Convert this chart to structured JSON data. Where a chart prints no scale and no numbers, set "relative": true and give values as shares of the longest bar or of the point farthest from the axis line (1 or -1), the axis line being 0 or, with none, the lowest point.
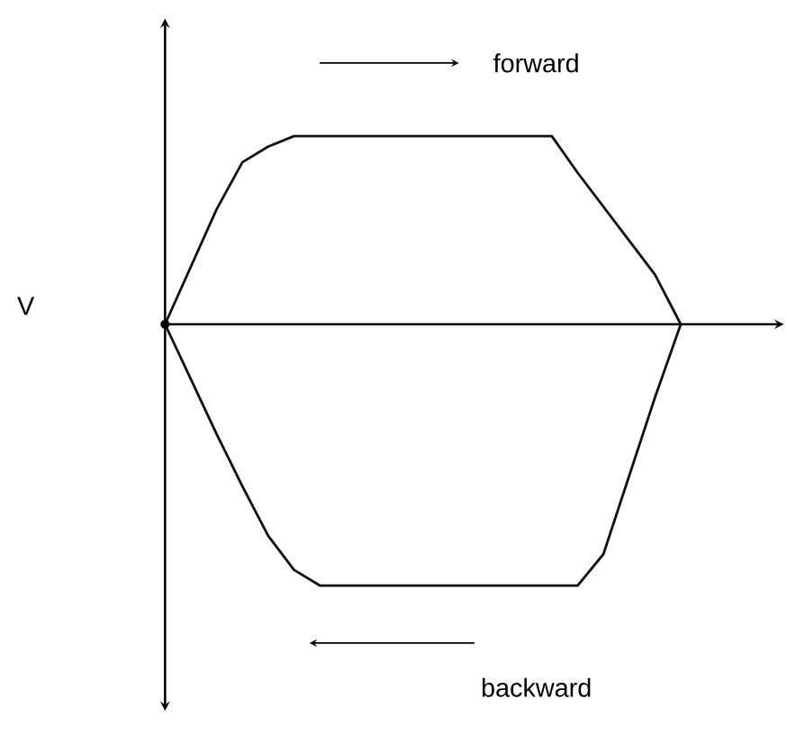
{
  "chart_data": {
    "type": "line",
    "relative": true,
    "ylabel": "V",
    "line_style": "solid",
    "categories": [
      null,
      null,
      null,
      null,
      null,
      null,
      null,
      null,
      null,
      null,
      null,
      null,
      null,
      null,
      null,
      null,
      null,
      null,
      null,
      null,
      null
    ],
    "series": [
      {
        "color": "#111111",
        "values": [
          0,
          0.22,
          0.44,
          0.62,
          0.68,
          0.72,
          0.72,
          0.72,
          0.72,
          0.72,
          0.72,
          0.72,
          0.72,
          0.72,
          0.72,
          0.72,
          0.58,
          0.45,
          0.32,
          0.19,
          0
        ]
      },
      {
        "color": "#111111",
        "values": [
          0,
          -0.21,
          -0.42,
          -0.62,
          -0.81,
          -0.94,
          -1,
          -1,
          -1,
          -1,
          -1,
          -1,
          -1,
          -1,
          -1,
          -1,
          -1,
          -0.88,
          -0.58,
          -0.28,
          0
        ]
      }
    ],
    "annotations": [
      "forward",
      "backward"
    ]
  }
}
